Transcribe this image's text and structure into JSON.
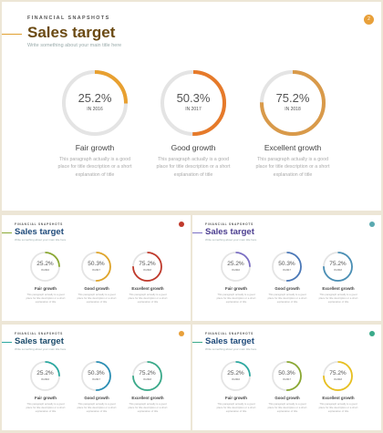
{
  "main": {
    "kicker": "FINANCIAL SNAPSHOTS",
    "title": "Sales target",
    "subtitle": "Write something about your main title here",
    "page_number": "2",
    "colors": [
      "#e8a030",
      "#e67a2a",
      "#d99a4a"
    ],
    "items": [
      {
        "percent": "25.2%",
        "value": 25.2,
        "year": "IN 2016",
        "label": "Fair growth",
        "description": "This paragraph actually is a good place for title description or a short explanation of title"
      },
      {
        "percent": "50.3%",
        "value": 50.3,
        "year": "IN 2017",
        "label": "Good growth",
        "description": "This paragraph actually is a good place for title description or a short explanation of title"
      },
      {
        "percent": "75.2%",
        "value": 75.2,
        "year": "IN 2018",
        "label": "Excellent growth",
        "description": "This paragraph actually is a good place for title description or a short explanation of title"
      }
    ]
  },
  "thumbs": [
    {
      "kicker": "FINANCIAL SNAPSHOTS",
      "title": "Sales target",
      "subtitle": "Write something about your main title here",
      "title_color": "#1e4a7a",
      "accent": "#8aa832",
      "dot_color": "#c0392b",
      "colors": [
        "#8aa832",
        "#e0a52a",
        "#c0392b"
      ],
      "items": [
        {
          "percent": "25.2%",
          "value": 25.2,
          "year": "IN 2016",
          "label": "Fair growth",
          "description": "This paragraph actually is a good place for title description or a short explanation of title"
        },
        {
          "percent": "50.3%",
          "value": 50.3,
          "year": "IN 2017",
          "label": "Good growth",
          "description": "This paragraph actually is a good place for title description or a short explanation of title"
        },
        {
          "percent": "75.2%",
          "value": 75.2,
          "year": "IN 2018",
          "label": "Excellent growth",
          "description": "This paragraph actually is a good place for title description or a short explanation of title"
        }
      ]
    },
    {
      "kicker": "FINANCIAL SNAPSHOTS",
      "title": "Sales target",
      "subtitle": "Write something about your main title here",
      "title_color": "#4a3d8f",
      "accent": "#7b6fc4",
      "dot_color": "#5aa9b0",
      "colors": [
        "#7b6fc4",
        "#4a78b8",
        "#4a8fb5"
      ],
      "items": [
        {
          "percent": "25.2%",
          "value": 25.2,
          "year": "IN 2016",
          "label": "Fair growth",
          "description": "This paragraph actually is a good place for title description or a short explanation of title"
        },
        {
          "percent": "50.3%",
          "value": 50.3,
          "year": "IN 2017",
          "label": "Good growth",
          "description": "This paragraph actually is a good place for title description or a short explanation of title"
        },
        {
          "percent": "75.2%",
          "value": 75.2,
          "year": "IN 2018",
          "label": "Excellent growth",
          "description": "This paragraph actually is a good place for title description or a short explanation of title"
        }
      ]
    },
    {
      "kicker": "FINANCIAL SNAPSHOTS",
      "title": "Sales target",
      "subtitle": "Write something about your main title here",
      "title_color": "#1a4a6a",
      "accent": "#2ba8a0",
      "dot_color": "#e8a03a",
      "colors": [
        "#2ba8a0",
        "#2b8fb5",
        "#3aaa8a"
      ],
      "items": [
        {
          "percent": "25.2%",
          "value": 25.2,
          "year": "IN 2016",
          "label": "Fair growth",
          "description": "This paragraph actually is a good place for title description or a short explanation of title"
        },
        {
          "percent": "50.3%",
          "value": 50.3,
          "year": "IN 2017",
          "label": "Good growth",
          "description": "This paragraph actually is a good place for title description or a short explanation of title"
        },
        {
          "percent": "75.2%",
          "value": 75.2,
          "year": "IN 2018",
          "label": "Excellent growth",
          "description": "This paragraph actually is a good place for title description or a short explanation of title"
        }
      ]
    },
    {
      "kicker": "FINANCIAL SNAPSHOTS",
      "title": "Sales target",
      "subtitle": "Write something about your main title here",
      "title_color": "#1e4a7a",
      "accent": "#3aaa8a",
      "dot_color": "#3aaa8a",
      "colors": [
        "#2ba8a0",
        "#8aa832",
        "#e8c020"
      ],
      "items": [
        {
          "percent": "25.2%",
          "value": 25.2,
          "year": "IN 2016",
          "label": "Fair growth",
          "description": "This paragraph actually is a good place for title description or a short explanation of title"
        },
        {
          "percent": "50.3%",
          "value": 50.3,
          "year": "IN 2017",
          "label": "Good growth",
          "description": "This paragraph actually is a good place for title description or a short explanation of title"
        },
        {
          "percent": "75.2%",
          "value": 75.2,
          "year": "IN 2018",
          "label": "Excellent growth",
          "description": "This paragraph actually is a good place for title description or a short explanation of title"
        }
      ]
    }
  ]
}
